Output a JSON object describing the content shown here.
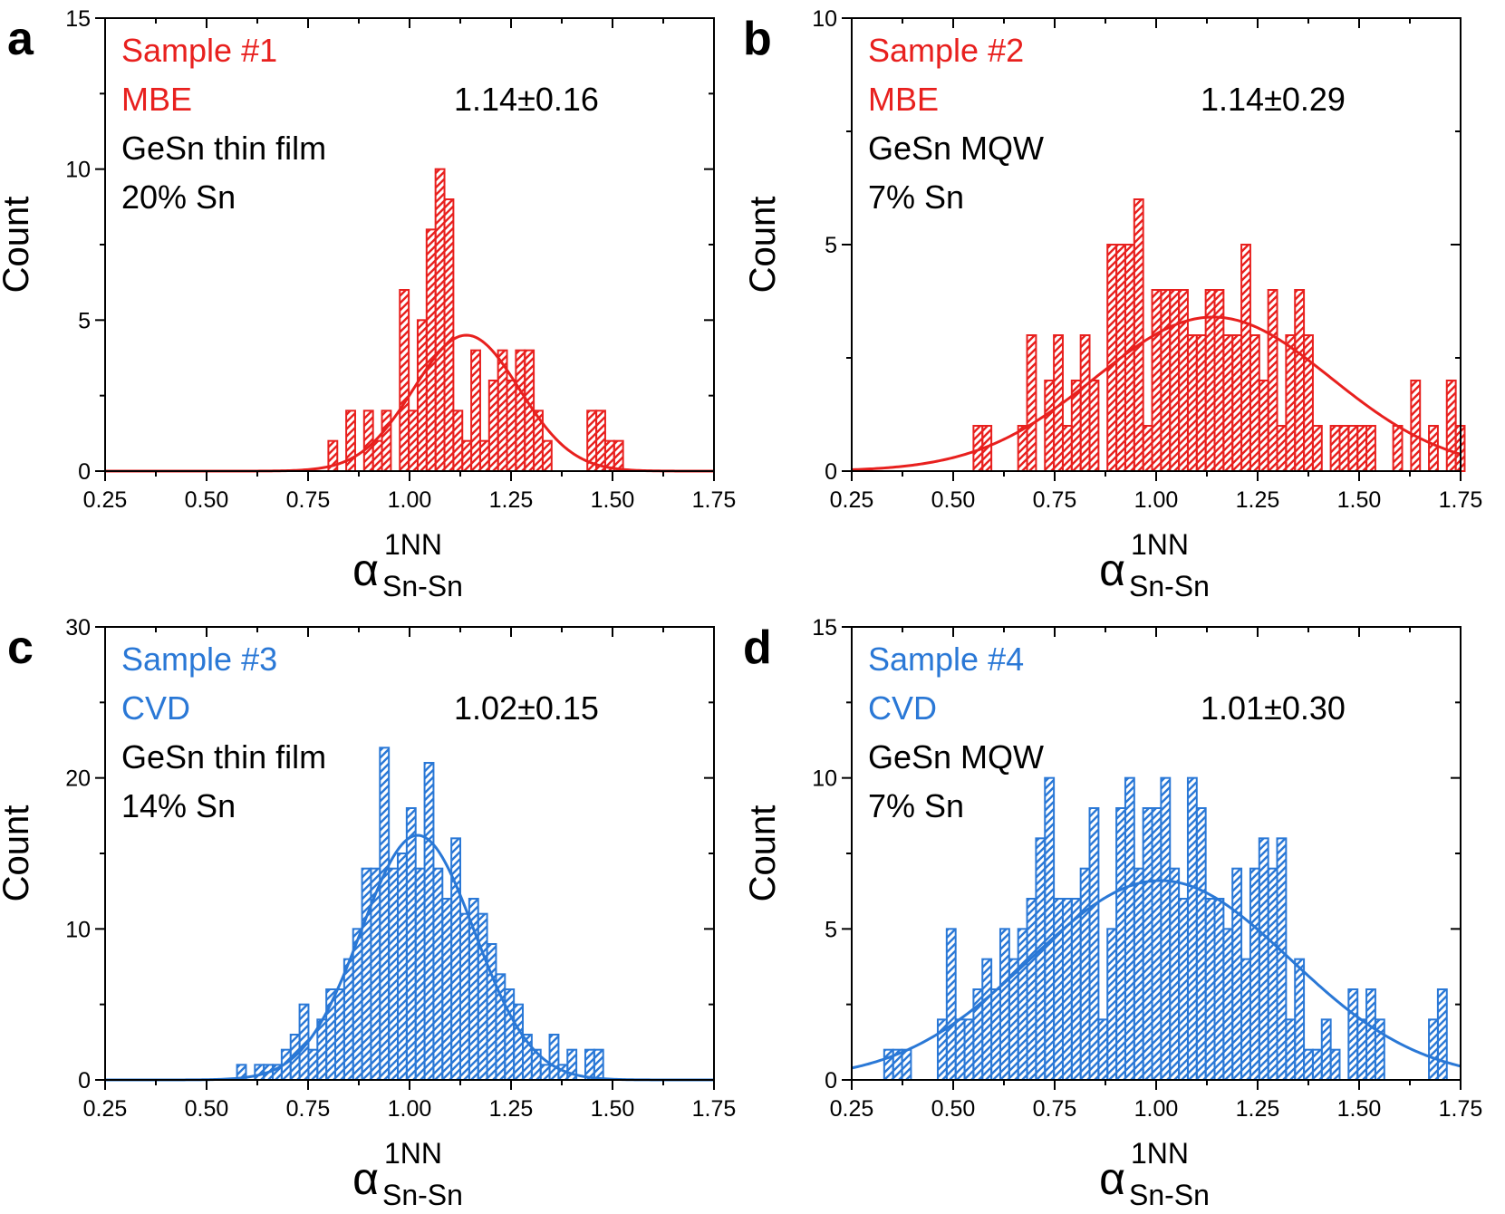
{
  "colors": {
    "red": "#e8201e",
    "blue": "#2a78d6",
    "black": "#000000"
  },
  "chart_data": [
    {
      "type": "bar",
      "panel_letter": "a",
      "color": "#e8201e",
      "x_edges_start": 0.8,
      "bin_width": 0.022,
      "x": [
        0.811,
        0.833,
        0.855,
        0.877,
        0.899,
        0.921,
        0.943,
        0.965,
        0.987,
        1.009,
        1.031,
        1.053,
        1.075,
        1.097,
        1.119,
        1.141,
        1.163,
        1.185,
        1.207,
        1.229,
        1.251,
        1.273,
        1.295,
        1.317,
        1.339,
        1.361,
        1.383,
        1.405,
        1.427,
        1.449,
        1.471,
        1.493,
        1.515,
        1.537,
        1.559
      ],
      "values": [
        1,
        0,
        2,
        0,
        2,
        1,
        2,
        0,
        6,
        2,
        5,
        8,
        10,
        9,
        2,
        1,
        4,
        1,
        3,
        4,
        3,
        4,
        4,
        2,
        1,
        0,
        0,
        0,
        0,
        2,
        2,
        1,
        1,
        0,
        0
      ],
      "fit": {
        "mean": 1.14,
        "sigma": 0.13,
        "peak": 4.5
      },
      "xlim": [
        0.25,
        1.75
      ],
      "ylim": [
        0,
        15
      ],
      "xticks": [
        "0.25",
        "0.50",
        "0.75",
        "1.00",
        "1.25",
        "1.50",
        "1.75"
      ],
      "yticks": [
        "0",
        "5",
        "10",
        "15"
      ],
      "ylabel": "Count",
      "xlabel": {
        "symbol": "α",
        "sup": "1NN",
        "sub": "Sn-Sn"
      },
      "annotation": {
        "line1": "Sample #1",
        "line2": "MBE",
        "line3": "GeSn thin film",
        "line4": "20% Sn",
        "stat": "1.14±0.16"
      }
    },
    {
      "type": "bar",
      "panel_letter": "b",
      "color": "#e8201e",
      "x_edges_start": 0.55,
      "bin_width": 0.022,
      "x": [
        0.561,
        0.583,
        0.605,
        0.627,
        0.649,
        0.671,
        0.693,
        0.715,
        0.737,
        0.759,
        0.781,
        0.803,
        0.825,
        0.847,
        0.869,
        0.891,
        0.913,
        0.935,
        0.957,
        0.979,
        1.001,
        1.023,
        1.045,
        1.067,
        1.089,
        1.111,
        1.133,
        1.155,
        1.177,
        1.199,
        1.221,
        1.243,
        1.265,
        1.287,
        1.309,
        1.331,
        1.353,
        1.375,
        1.397,
        1.419,
        1.441,
        1.463,
        1.485,
        1.507,
        1.529,
        1.551,
        1.573,
        1.595,
        1.617,
        1.639,
        1.661,
        1.683,
        1.705,
        1.727,
        1.749
      ],
      "values": [
        1,
        1,
        0,
        0,
        0,
        1,
        3,
        0,
        2,
        3,
        1,
        2,
        3,
        2,
        0,
        5,
        5,
        5,
        6,
        1,
        4,
        4,
        4,
        4,
        3,
        3,
        4,
        4,
        3,
        3,
        5,
        3,
        2,
        4,
        1,
        3,
        4,
        3,
        1,
        0,
        1,
        1,
        1,
        1,
        1,
        0,
        0,
        1,
        0,
        2,
        0,
        1,
        0,
        2,
        1
      ],
      "fit": {
        "mean": 1.14,
        "sigma": 0.29,
        "peak": 3.4
      },
      "xlim": [
        0.25,
        1.75
      ],
      "ylim": [
        0,
        10
      ],
      "xticks": [
        "0.25",
        "0.50",
        "0.75",
        "1.00",
        "1.25",
        "1.50",
        "1.75"
      ],
      "yticks": [
        "0",
        "5",
        "10"
      ],
      "ylabel": "Count",
      "xlabel": {
        "symbol": "α",
        "sup": "1NN",
        "sub": "Sn-Sn"
      },
      "annotation": {
        "line1": "Sample #2",
        "line2": "MBE",
        "line3": "GeSn MQW",
        "line4": "7% Sn",
        "stat": "1.14±0.29"
      }
    },
    {
      "type": "bar",
      "panel_letter": "c",
      "color": "#2a78d6",
      "x_edges_start": 0.575,
      "bin_width": 0.022,
      "x": [
        0.586,
        0.608,
        0.63,
        0.652,
        0.674,
        0.696,
        0.718,
        0.74,
        0.762,
        0.784,
        0.806,
        0.828,
        0.85,
        0.872,
        0.894,
        0.916,
        0.938,
        0.96,
        0.982,
        1.004,
        1.026,
        1.048,
        1.07,
        1.092,
        1.114,
        1.136,
        1.158,
        1.18,
        1.202,
        1.224,
        1.246,
        1.268,
        1.29,
        1.312,
        1.334,
        1.356,
        1.378,
        1.4,
        1.422,
        1.444,
        1.466
      ],
      "values": [
        1,
        0,
        1,
        1,
        1,
        2,
        3,
        5,
        2,
        4,
        6,
        6,
        8,
        10,
        14,
        14,
        22,
        14,
        15,
        18,
        14,
        21,
        14,
        12,
        16,
        11,
        12,
        11,
        9,
        7,
        6,
        5,
        3,
        2,
        1,
        3,
        1,
        2,
        0,
        2,
        2
      ],
      "fit": {
        "mean": 1.02,
        "sigma": 0.14,
        "peak": 16.2
      },
      "xlim": [
        0.25,
        1.75
      ],
      "ylim": [
        0,
        30
      ],
      "xticks": [
        "0.25",
        "0.50",
        "0.75",
        "1.00",
        "1.25",
        "1.50",
        "1.75"
      ],
      "yticks": [
        "0",
        "10",
        "20",
        "30"
      ],
      "ylabel": "Count",
      "xlabel": {
        "symbol": "α",
        "sup": "1NN",
        "sub": "Sn-Sn"
      },
      "annotation": {
        "line1": "Sample #3",
        "line2": "CVD",
        "line3": "GeSn thin film",
        "line4": "14% Sn",
        "stat": "1.02±0.15"
      }
    },
    {
      "type": "bar",
      "panel_letter": "d",
      "color": "#2a78d6",
      "x_edges_start": 0.33,
      "bin_width": 0.022,
      "x": [
        0.341,
        0.363,
        0.385,
        0.407,
        0.429,
        0.451,
        0.473,
        0.495,
        0.517,
        0.539,
        0.561,
        0.583,
        0.605,
        0.627,
        0.649,
        0.671,
        0.693,
        0.715,
        0.737,
        0.759,
        0.781,
        0.803,
        0.825,
        0.847,
        0.869,
        0.891,
        0.913,
        0.935,
        0.957,
        0.979,
        1.001,
        1.023,
        1.045,
        1.067,
        1.089,
        1.111,
        1.133,
        1.155,
        1.177,
        1.199,
        1.221,
        1.243,
        1.265,
        1.287,
        1.309,
        1.331,
        1.353,
        1.375,
        1.397,
        1.419,
        1.441,
        1.463,
        1.485,
        1.507,
        1.529,
        1.551,
        1.573,
        1.595,
        1.617,
        1.639,
        1.661,
        1.683,
        1.705,
        1.727
      ],
      "values": [
        1,
        1,
        1,
        0,
        0,
        0,
        2,
        5,
        2,
        2,
        3,
        4,
        3,
        5,
        4,
        5,
        6,
        8,
        10,
        6,
        6,
        6,
        7,
        9,
        2,
        5,
        9,
        10,
        7,
        9,
        9,
        10,
        7,
        6,
        10,
        9,
        6,
        6,
        5,
        7,
        4,
        7,
        8,
        7,
        8,
        2,
        4,
        1,
        1,
        2,
        1,
        0,
        3,
        2,
        3,
        2,
        0,
        0,
        0,
        0,
        0,
        2,
        3,
        0
      ],
      "fit": {
        "mean": 1.01,
        "sigma": 0.32,
        "peak": 6.6
      },
      "xlim": [
        0.25,
        1.75
      ],
      "ylim": [
        0,
        15
      ],
      "xticks": [
        "0.25",
        "0.50",
        "0.75",
        "1.00",
        "1.25",
        "1.50",
        "1.75"
      ],
      "yticks": [
        "0",
        "5",
        "10",
        "15"
      ],
      "ylabel": "Count",
      "xlabel": {
        "symbol": "α",
        "sup": "1NN",
        "sub": "Sn-Sn"
      },
      "annotation": {
        "line1": "Sample #4",
        "line2": "CVD",
        "line3": "GeSn MQW",
        "line4": "7% Sn",
        "stat": "1.01±0.30"
      }
    }
  ]
}
